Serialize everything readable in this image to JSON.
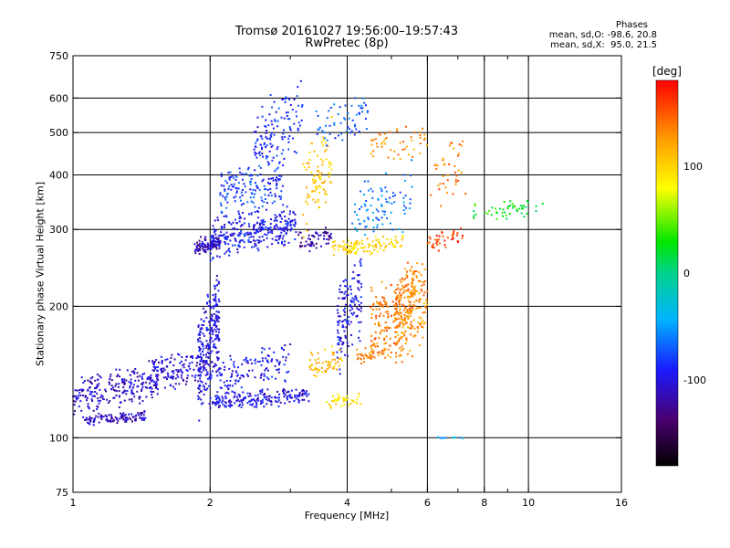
{
  "chart_data": {
    "type": "scatter",
    "title": "Tromsø 20161027 19:56:00–19:57:43",
    "subtitle": "RwPretec (8p)",
    "stats": {
      "heading": "Phases",
      "line1": "mean, sd,O: -98.6, 20.8",
      "line2": "mean, sd,X:  95.0, 21.5"
    },
    "xlabel": "Frequency [MHz]",
    "ylabel": "Stationary phase Virtual Height [km]",
    "x_scale": "log",
    "y_scale": "log",
    "xlim": [
      1,
      16
    ],
    "ylim": [
      75,
      750
    ],
    "x_ticks": [
      1,
      2,
      4,
      6,
      8,
      10,
      16
    ],
    "x_grid": [
      2,
      4,
      6,
      8,
      10
    ],
    "x_minor_ticks": [
      3,
      5,
      7,
      9
    ],
    "y_ticks": [
      75,
      100,
      200,
      300,
      400,
      500,
      600,
      750
    ],
    "y_grid": [
      100,
      200,
      300,
      400,
      500,
      600
    ],
    "grid": true,
    "colorbar": {
      "label": "[deg]",
      "ticks": [
        100,
        0,
        -100
      ],
      "range": [
        -180,
        180
      ],
      "placement": "right"
    },
    "series": [
      {
        "x": [
          1.0,
          1.55
        ],
        "y": [
          118,
          142
        ],
        "phase": -108,
        "count": 230,
        "spread_y": 0.06
      },
      {
        "x": [
          1.05,
          1.45
        ],
        "y": [
          108,
          114
        ],
        "phase": -110,
        "count": 110,
        "spread_y": 0.015
      },
      {
        "x": [
          1.45,
          1.92
        ],
        "y": [
          135,
          150
        ],
        "phase": -105,
        "count": 130,
        "spread_y": 0.07
      },
      {
        "x": [
          1.88,
          2.1
        ],
        "y": [
          115,
          225
        ],
        "phase": -100,
        "count": 260,
        "spread_y": 0.12
      },
      {
        "x": [
          2.0,
          3.3
        ],
        "y": [
          118,
          128
        ],
        "phase": -100,
        "count": 200,
        "spread_y": 0.03
      },
      {
        "x": [
          2.1,
          3.0
        ],
        "y": [
          130,
          160
        ],
        "phase": -95,
        "count": 120,
        "spread_y": 0.05
      },
      {
        "x": [
          1.85,
          2.1
        ],
        "y": [
          265,
          290
        ],
        "phase": -115,
        "count": 90,
        "spread_y": 0.03
      },
      {
        "x": [
          2.0,
          3.1
        ],
        "y": [
          265,
          330
        ],
        "phase": -95,
        "count": 300,
        "spread_y": 0.06
      },
      {
        "x": [
          2.1,
          2.9
        ],
        "y": [
          330,
          420
        ],
        "phase": -80,
        "count": 160,
        "spread_y": 0.08
      },
      {
        "x": [
          2.5,
          3.2
        ],
        "y": [
          420,
          630
        ],
        "phase": -85,
        "count": 120,
        "spread_y": 0.08
      },
      {
        "x": [
          3.1,
          3.7
        ],
        "y": [
          270,
          300
        ],
        "phase": -118,
        "count": 60,
        "spread_y": 0.03
      },
      {
        "x": [
          3.2,
          3.7
        ],
        "y": [
          310,
          500
        ],
        "phase": 105,
        "count": 90,
        "spread_y": 0.1
      },
      {
        "x": [
          3.4,
          4.5
        ],
        "y": [
          455,
          600
        ],
        "phase": -70,
        "count": 60,
        "spread_y": 0.06
      },
      {
        "x": [
          3.3,
          3.9
        ],
        "y": [
          140,
          160
        ],
        "phase": 110,
        "count": 60,
        "spread_y": 0.04
      },
      {
        "x": [
          3.6,
          4.3
        ],
        "y": [
          118,
          125
        ],
        "phase": 90,
        "count": 40,
        "spread_y": 0.03
      },
      {
        "x": [
          3.8,
          4.3
        ],
        "y": [
          150,
          250
        ],
        "phase": -95,
        "count": 140,
        "spread_y": 0.1
      },
      {
        "x": [
          4.2,
          5.0
        ],
        "y": [
          150,
          165
        ],
        "phase": 130,
        "count": 60,
        "spread_y": 0.04
      },
      {
        "x": [
          4.5,
          5.6
        ],
        "y": [
          160,
          240
        ],
        "phase": 140,
        "count": 160,
        "spread_y": 0.1
      },
      {
        "x": [
          5.1,
          6.0
        ],
        "y": [
          150,
          260
        ],
        "phase": 130,
        "count": 200,
        "spread_y": 0.12
      },
      {
        "x": [
          3.7,
          5.3
        ],
        "y": [
          265,
          285
        ],
        "phase": 100,
        "count": 110,
        "spread_y": 0.03
      },
      {
        "x": [
          4.1,
          5.6
        ],
        "y": [
          285,
          400
        ],
        "phase": -60,
        "count": 90,
        "spread_y": 0.1
      },
      {
        "x": [
          4.5,
          6.0
        ],
        "y": [
          440,
          520
        ],
        "phase": 130,
        "count": 50,
        "spread_y": 0.06
      },
      {
        "x": [
          6.0,
          7.2
        ],
        "y": [
          270,
          300
        ],
        "phase": 160,
        "count": 40,
        "spread_y": 0.03
      },
      {
        "x": [
          6.1,
          7.3
        ],
        "y": [
          340,
          480
        ],
        "phase": 140,
        "count": 40,
        "spread_y": 0.1
      },
      {
        "x": [
          7.5,
          10.8
        ],
        "y": [
          320,
          345
        ],
        "phase": 25,
        "count": 50,
        "spread_y": 0.03
      },
      {
        "x": [
          6.3,
          7.2
        ],
        "y": [
          100,
          100
        ],
        "phase": -40,
        "count": 10,
        "spread_y": 0.003
      }
    ]
  }
}
